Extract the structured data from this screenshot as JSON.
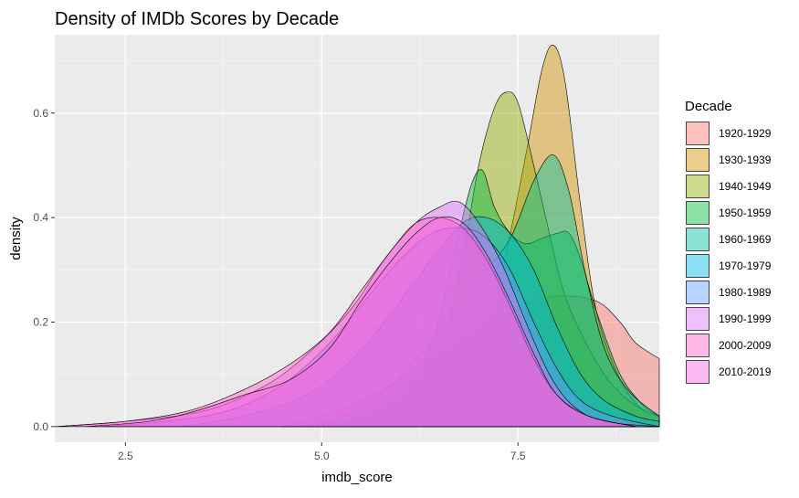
{
  "chart_data": {
    "type": "area",
    "subtype": "density",
    "title": "Density of IMDb Scores by Decade",
    "xlabel": "imdb_score",
    "ylabel": "density",
    "xlim": [
      1.6,
      9.3
    ],
    "ylim": [
      -0.03,
      0.75
    ],
    "x_ticks": [
      2.5,
      5.0,
      7.5
    ],
    "x_tick_labels": [
      "2.5",
      "5.0",
      "7.5"
    ],
    "y_ticks": [
      0.0,
      0.2,
      0.4,
      0.6
    ],
    "y_tick_labels": [
      "0.0",
      "0.2",
      "0.4",
      "0.6"
    ],
    "grid": true,
    "legend": {
      "title": "Decade",
      "position": "right"
    },
    "series": [
      {
        "name": "1920-1929",
        "color": "#F8766D",
        "points": [
          [
            4.5,
            0.0
          ],
          [
            5.0,
            0.02
          ],
          [
            5.5,
            0.05
          ],
          [
            6.0,
            0.09
          ],
          [
            6.5,
            0.14
          ],
          [
            7.0,
            0.19
          ],
          [
            7.5,
            0.23
          ],
          [
            8.0,
            0.25
          ],
          [
            8.5,
            0.24
          ],
          [
            8.8,
            0.2
          ],
          [
            9.0,
            0.16
          ],
          [
            9.3,
            0.13
          ]
        ]
      },
      {
        "name": "1930-1939",
        "color": "#D39200",
        "points": [
          [
            4.5,
            0.0
          ],
          [
            5.5,
            0.01
          ],
          [
            6.0,
            0.03
          ],
          [
            6.5,
            0.07
          ],
          [
            7.0,
            0.15
          ],
          [
            7.3,
            0.3
          ],
          [
            7.6,
            0.52
          ],
          [
            7.8,
            0.68
          ],
          [
            7.95,
            0.73
          ],
          [
            8.1,
            0.66
          ],
          [
            8.3,
            0.42
          ],
          [
            8.5,
            0.22
          ],
          [
            8.8,
            0.09
          ],
          [
            9.1,
            0.03
          ],
          [
            9.3,
            0.02
          ]
        ]
      },
      {
        "name": "1940-1949",
        "color": "#93AA00",
        "points": [
          [
            5.0,
            0.0
          ],
          [
            5.5,
            0.01
          ],
          [
            6.0,
            0.04
          ],
          [
            6.5,
            0.14
          ],
          [
            6.8,
            0.33
          ],
          [
            7.0,
            0.5
          ],
          [
            7.2,
            0.61
          ],
          [
            7.35,
            0.64
          ],
          [
            7.5,
            0.62
          ],
          [
            7.7,
            0.5
          ],
          [
            7.9,
            0.37
          ],
          [
            8.1,
            0.25
          ],
          [
            8.4,
            0.15
          ],
          [
            8.7,
            0.08
          ],
          [
            9.0,
            0.04
          ],
          [
            9.3,
            0.02
          ]
        ]
      },
      {
        "name": "1950-1959",
        "color": "#00BA38",
        "points": [
          [
            5.0,
            0.0
          ],
          [
            5.5,
            0.02
          ],
          [
            6.0,
            0.06
          ],
          [
            6.4,
            0.16
          ],
          [
            6.7,
            0.34
          ],
          [
            6.9,
            0.46
          ],
          [
            7.05,
            0.49
          ],
          [
            7.2,
            0.42
          ],
          [
            7.4,
            0.37
          ],
          [
            7.6,
            0.35
          ],
          [
            7.8,
            0.36
          ],
          [
            8.0,
            0.37
          ],
          [
            8.15,
            0.37
          ],
          [
            8.3,
            0.32
          ],
          [
            8.5,
            0.22
          ],
          [
            8.8,
            0.1
          ],
          [
            9.1,
            0.04
          ],
          [
            9.3,
            0.02
          ]
        ]
      },
      {
        "name": "1960-1969",
        "color": "#00C19F",
        "points": [
          [
            4.8,
            0.0
          ],
          [
            5.3,
            0.02
          ],
          [
            5.8,
            0.07
          ],
          [
            6.2,
            0.13
          ],
          [
            6.6,
            0.2
          ],
          [
            7.0,
            0.28
          ],
          [
            7.4,
            0.36
          ],
          [
            7.7,
            0.47
          ],
          [
            7.95,
            0.52
          ],
          [
            8.15,
            0.45
          ],
          [
            8.35,
            0.3
          ],
          [
            8.6,
            0.15
          ],
          [
            8.9,
            0.07
          ],
          [
            9.3,
            0.02
          ]
        ]
      },
      {
        "name": "1970-1979",
        "color": "#00B9E3",
        "points": [
          [
            3.2,
            0.0
          ],
          [
            4.0,
            0.02
          ],
          [
            4.8,
            0.06
          ],
          [
            5.4,
            0.13
          ],
          [
            5.9,
            0.22
          ],
          [
            6.4,
            0.32
          ],
          [
            6.8,
            0.39
          ],
          [
            7.1,
            0.4
          ],
          [
            7.4,
            0.37
          ],
          [
            7.7,
            0.3
          ],
          [
            8.0,
            0.19
          ],
          [
            8.3,
            0.1
          ],
          [
            8.6,
            0.05
          ],
          [
            9.0,
            0.02
          ],
          [
            9.3,
            0.01
          ]
        ]
      },
      {
        "name": "1980-1989",
        "color": "#619CFF",
        "points": [
          [
            2.2,
            0.0
          ],
          [
            3.0,
            0.01
          ],
          [
            3.8,
            0.03
          ],
          [
            4.5,
            0.08
          ],
          [
            5.1,
            0.16
          ],
          [
            5.6,
            0.25
          ],
          [
            6.0,
            0.32
          ],
          [
            6.4,
            0.37
          ],
          [
            6.8,
            0.38
          ],
          [
            7.1,
            0.36
          ],
          [
            7.4,
            0.3
          ],
          [
            7.7,
            0.2
          ],
          [
            8.0,
            0.11
          ],
          [
            8.3,
            0.05
          ],
          [
            8.7,
            0.02
          ],
          [
            9.3,
            0.0
          ]
        ]
      },
      {
        "name": "1990-1999",
        "color": "#DB72FB",
        "points": [
          [
            1.6,
            0.0
          ],
          [
            2.5,
            0.01
          ],
          [
            3.5,
            0.03
          ],
          [
            4.3,
            0.08
          ],
          [
            4.9,
            0.15
          ],
          [
            5.4,
            0.23
          ],
          [
            5.8,
            0.32
          ],
          [
            6.2,
            0.39
          ],
          [
            6.5,
            0.42
          ],
          [
            6.75,
            0.43
          ],
          [
            7.0,
            0.39
          ],
          [
            7.3,
            0.31
          ],
          [
            7.6,
            0.2
          ],
          [
            7.9,
            0.1
          ],
          [
            8.2,
            0.04
          ],
          [
            8.6,
            0.01
          ],
          [
            9.3,
            0.0
          ]
        ]
      },
      {
        "name": "2000-2009",
        "color": "#FF61C3",
        "points": [
          [
            1.6,
            0.0
          ],
          [
            2.5,
            0.01
          ],
          [
            3.3,
            0.03
          ],
          [
            4.0,
            0.07
          ],
          [
            4.6,
            0.12
          ],
          [
            5.1,
            0.18
          ],
          [
            5.5,
            0.26
          ],
          [
            5.9,
            0.34
          ],
          [
            6.2,
            0.39
          ],
          [
            6.5,
            0.4
          ],
          [
            6.8,
            0.38
          ],
          [
            7.1,
            0.32
          ],
          [
            7.4,
            0.23
          ],
          [
            7.7,
            0.13
          ],
          [
            8.0,
            0.06
          ],
          [
            8.4,
            0.02
          ],
          [
            9.0,
            0.0
          ]
        ]
      },
      {
        "name": "2010-2019",
        "color": "#F564E3",
        "points": [
          [
            2.0,
            0.0
          ],
          [
            2.8,
            0.01
          ],
          [
            3.4,
            0.03
          ],
          [
            4.0,
            0.06
          ],
          [
            4.6,
            0.09
          ],
          [
            5.1,
            0.15
          ],
          [
            5.5,
            0.24
          ],
          [
            5.9,
            0.32
          ],
          [
            6.2,
            0.37
          ],
          [
            6.5,
            0.4
          ],
          [
            6.8,
            0.39
          ],
          [
            7.1,
            0.33
          ],
          [
            7.4,
            0.24
          ],
          [
            7.7,
            0.14
          ],
          [
            8.0,
            0.06
          ],
          [
            8.4,
            0.02
          ],
          [
            9.0,
            0.0
          ]
        ]
      }
    ]
  }
}
